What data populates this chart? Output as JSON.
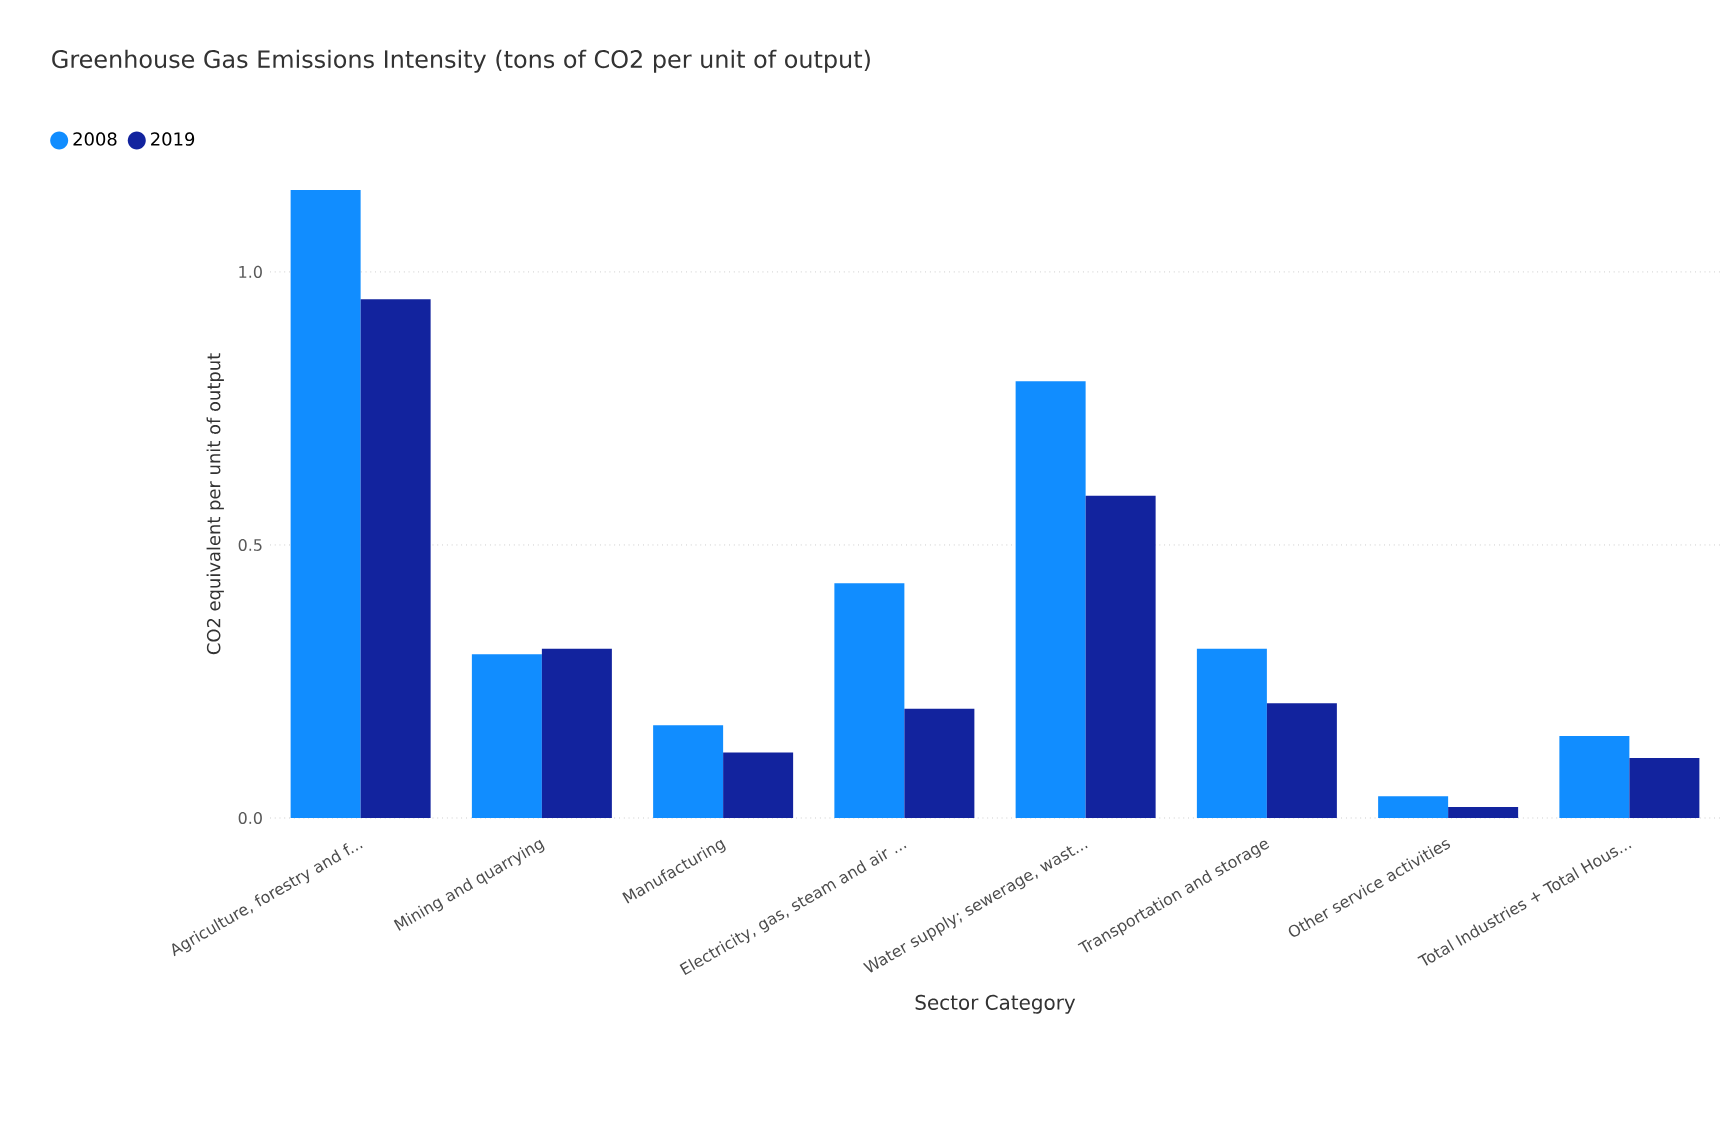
{
  "chart_data": {
    "type": "bar",
    "title": "Greenhouse Gas Emissions Intensity (tons of CO2 per unit of output)",
    "xlabel": "Sector Category",
    "ylabel": "CO2 equivalent per unit of output",
    "categories": [
      "Agriculture, forestry and f...",
      "Mining and quarrying",
      "Manufacturing",
      "Electricity, gas, steam and air ...",
      "Water supply; sewerage, wast...",
      "Transportation and storage",
      "Other service activities",
      "Total Industries + Total Hous..."
    ],
    "series": [
      {
        "name": "2008",
        "color": "#118dff",
        "values": [
          1.15,
          0.3,
          0.17,
          0.43,
          0.8,
          0.31,
          0.04,
          0.15
        ]
      },
      {
        "name": "2019",
        "color": "#12239e",
        "values": [
          0.95,
          0.31,
          0.12,
          0.2,
          0.59,
          0.21,
          0.02,
          0.11
        ]
      }
    ],
    "ylim": [
      0,
      1.15
    ],
    "yticks": [
      {
        "value": 0,
        "label": "0.0"
      },
      {
        "value": 0.5,
        "label": "0.5"
      },
      {
        "value": 1,
        "label": "1.0"
      }
    ],
    "grid": "y",
    "legend": "top left"
  }
}
